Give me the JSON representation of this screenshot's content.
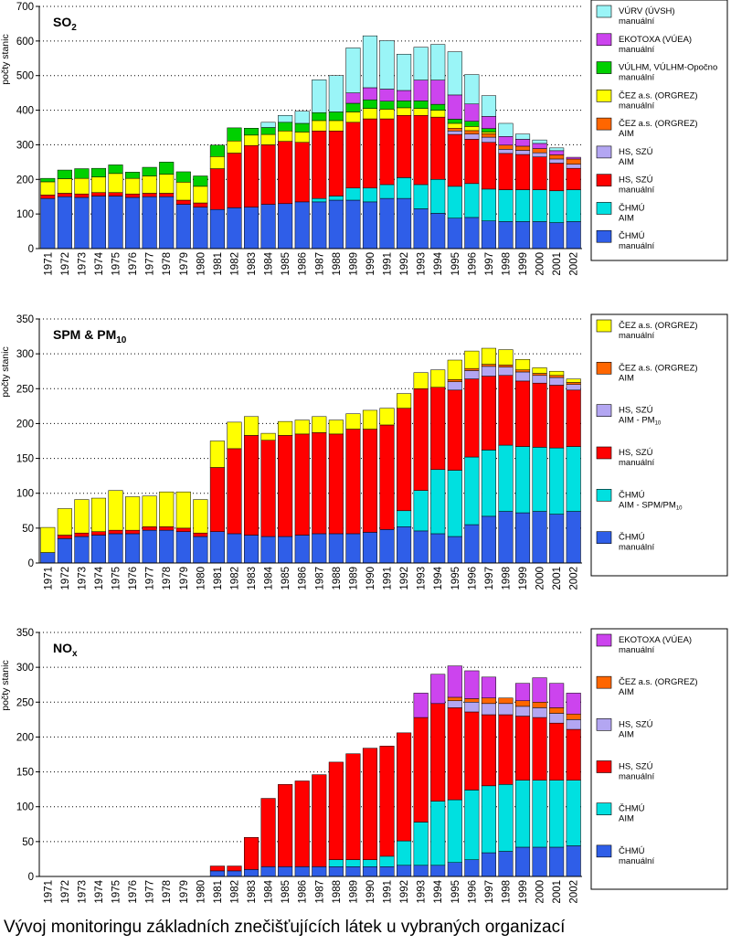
{
  "caption": "Vývoj monitoringu základních znečišťujících látek u vybraných organizací",
  "chart_data": [
    {
      "type": "bar",
      "stacked": true,
      "title": "SO2",
      "title_main": "SO",
      "title_sub": "2",
      "ylabel": "počty stanic",
      "ylim": [
        0,
        700
      ],
      "yticks": [
        0,
        100,
        200,
        300,
        400,
        500,
        600,
        700
      ],
      "grid": "dotted horizontal",
      "legend_position": "right",
      "categories": [
        "1971",
        "1972",
        "1973",
        "1974",
        "1975",
        "1976",
        "1977",
        "1978",
        "1979",
        "1980",
        "1981",
        "1982",
        "1983",
        "1984",
        "1985",
        "1986",
        "1987",
        "1988",
        "1989",
        "1990",
        "1991",
        "1992",
        "1993",
        "1994",
        "1995",
        "1996",
        "1997",
        "1998",
        "1999",
        "2000",
        "2001",
        "2002"
      ],
      "series": [
        {
          "name": "ČHMÚ manuální",
          "label1": "ČHMÚ",
          "label2": "manuální",
          "color": "#2f5ee8",
          "values": [
            145,
            150,
            148,
            152,
            152,
            148,
            150,
            150,
            128,
            120,
            113,
            118,
            120,
            128,
            130,
            135,
            135,
            140,
            140,
            135,
            145,
            145,
            115,
            102,
            88,
            90,
            80,
            78,
            78,
            78,
            75,
            78
          ]
        },
        {
          "name": "ČHMÚ AIM",
          "label1": "ČHMÚ",
          "label2": "AIM",
          "color": "#00e0e0",
          "values": [
            0,
            0,
            0,
            0,
            0,
            0,
            0,
            0,
            0,
            0,
            0,
            0,
            0,
            0,
            0,
            0,
            10,
            12,
            35,
            40,
            40,
            60,
            70,
            98,
            92,
            98,
            92,
            92,
            92,
            92,
            92,
            92
          ]
        },
        {
          "name": "HS, SZÚ manuální",
          "label1": "HS, SZÚ",
          "label2": "manuální",
          "color": "#ff0000",
          "values": [
            10,
            10,
            10,
            10,
            10,
            10,
            10,
            10,
            12,
            12,
            118,
            158,
            178,
            172,
            180,
            172,
            195,
            188,
            190,
            200,
            190,
            180,
            200,
            180,
            150,
            128,
            135,
            105,
            102,
            95,
            80,
            62
          ]
        },
        {
          "name": "HS, SZÚ AIM",
          "label1": "HS, SZÚ",
          "label2": "AIM",
          "color": "#b3a6f2",
          "values": [
            0,
            0,
            0,
            0,
            0,
            0,
            0,
            0,
            0,
            0,
            0,
            0,
            0,
            0,
            0,
            0,
            0,
            0,
            0,
            0,
            0,
            0,
            0,
            0,
            10,
            15,
            15,
            12,
            12,
            12,
            12,
            12
          ]
        },
        {
          "name": "ČEZ a.s. (ORGREZ) AIM",
          "label1": "ČEZ a.s. (ORGREZ)",
          "label2": "AIM",
          "color": "#ff6600",
          "values": [
            0,
            0,
            0,
            0,
            0,
            0,
            0,
            0,
            0,
            0,
            0,
            0,
            0,
            0,
            0,
            0,
            0,
            0,
            0,
            0,
            0,
            0,
            0,
            0,
            8,
            10,
            10,
            12,
            12,
            12,
            12,
            15
          ]
        },
        {
          "name": "ČEZ a.s. (ORGREZ) manuální",
          "label1": "ČEZ a.s. (ORGREZ)",
          "label2": "manuální",
          "color": "#ffff00",
          "values": [
            38,
            42,
            45,
            45,
            55,
            45,
            50,
            55,
            52,
            48,
            35,
            35,
            30,
            30,
            30,
            30,
            30,
            30,
            30,
            30,
            28,
            22,
            20,
            20,
            14,
            12,
            5,
            0,
            0,
            0,
            0,
            0
          ]
        },
        {
          "name": "VÚLHM, VÚLHM-Opočno manuální",
          "label1": "VÚLHM, VÚLHM-Opočno",
          "label2": "manuální",
          "color": "#00d000",
          "values": [
            10,
            25,
            28,
            25,
            25,
            18,
            25,
            35,
            30,
            30,
            33,
            38,
            20,
            20,
            25,
            25,
            23,
            25,
            25,
            25,
            23,
            20,
            22,
            17,
            12,
            15,
            10,
            0,
            0,
            0,
            0,
            0
          ]
        },
        {
          "name": "EKOTOXA (VÚEA) manuální",
          "label1": "EKOTOXA (VÚEA)",
          "label2": "manuální",
          "color": "#cc44ee",
          "values": [
            0,
            0,
            0,
            0,
            0,
            0,
            0,
            0,
            0,
            0,
            0,
            0,
            0,
            0,
            0,
            0,
            0,
            0,
            30,
            35,
            35,
            30,
            60,
            70,
            70,
            50,
            35,
            25,
            20,
            15,
            12,
            5
          ]
        },
        {
          "name": "VÚRV (ÚVSH) manuální",
          "label1": "VÚRV (ÚVSH)",
          "label2": "manuální",
          "color": "#9af5f7",
          "values": [
            0,
            0,
            0,
            0,
            0,
            0,
            0,
            0,
            0,
            0,
            0,
            0,
            0,
            15,
            20,
            35,
            95,
            105,
            130,
            150,
            140,
            105,
            95,
            103,
            125,
            85,
            60,
            38,
            15,
            10,
            8,
            0
          ]
        }
      ]
    },
    {
      "type": "bar",
      "stacked": true,
      "title": "SPM & PM10",
      "title_main": "SPM & PM",
      "title_sub": "10",
      "ylabel": "počty stanic",
      "ylim": [
        0,
        350
      ],
      "yticks": [
        0,
        50,
        100,
        150,
        200,
        250,
        300,
        350
      ],
      "grid": "dotted horizontal",
      "legend_position": "right",
      "categories": [
        "1971",
        "1972",
        "1973",
        "1974",
        "1975",
        "1976",
        "1977",
        "1978",
        "1979",
        "1980",
        "1981",
        "1982",
        "1983",
        "1984",
        "1985",
        "1986",
        "1987",
        "1988",
        "1989",
        "1990",
        "1991",
        "1992",
        "1993",
        "1994",
        "1995",
        "1996",
        "1997",
        "1998",
        "1999",
        "2000",
        "2001",
        "2002"
      ],
      "series": [
        {
          "name": "ČHMÚ manuální",
          "label1": "ČHMÚ",
          "label2": "manuální",
          "color": "#2f5ee8",
          "values": [
            15,
            35,
            38,
            40,
            42,
            42,
            47,
            47,
            45,
            38,
            45,
            42,
            40,
            38,
            38,
            40,
            42,
            42,
            42,
            44,
            48,
            52,
            46,
            42,
            38,
            55,
            67,
            74,
            72,
            74,
            70,
            74
          ]
        },
        {
          "name": "ČHMÚ AIM - SPM/PM10",
          "label1": "ČHMÚ",
          "label2": "AIM - SPM/PM",
          "sub2": "10",
          "color": "#00e0e0",
          "values": [
            0,
            0,
            0,
            0,
            0,
            0,
            0,
            0,
            0,
            0,
            0,
            0,
            0,
            0,
            0,
            0,
            0,
            0,
            0,
            0,
            0,
            23,
            58,
            92,
            95,
            97,
            95,
            95,
            95,
            92,
            95,
            93
          ]
        },
        {
          "name": "HS, SZÚ manuální",
          "label1": "HS, SZÚ",
          "label2": "manuální",
          "color": "#ff0000",
          "values": [
            0,
            5,
            5,
            5,
            5,
            5,
            5,
            5,
            5,
            5,
            92,
            122,
            143,
            138,
            145,
            145,
            145,
            143,
            150,
            148,
            150,
            147,
            146,
            118,
            115,
            112,
            106,
            100,
            94,
            92,
            90,
            81
          ]
        },
        {
          "name": "HS, SZÚ AIM - PM10",
          "label1": "HS, SZÚ",
          "label2": "AIM - PM",
          "sub2": "10",
          "color": "#b3a6f2",
          "values": [
            0,
            0,
            0,
            0,
            0,
            0,
            0,
            0,
            0,
            0,
            0,
            0,
            0,
            0,
            0,
            0,
            0,
            0,
            0,
            0,
            0,
            0,
            0,
            0,
            12,
            12,
            14,
            12,
            13,
            11,
            11,
            8
          ]
        },
        {
          "name": "ČEZ a.s. (ORGREZ) AIM",
          "label1": "ČEZ a.s. (ORGREZ)",
          "label2": "AIM",
          "color": "#ff6600",
          "values": [
            0,
            0,
            0,
            0,
            0,
            0,
            0,
            0,
            0,
            0,
            0,
            0,
            0,
            0,
            0,
            0,
            0,
            0,
            0,
            0,
            0,
            0,
            0,
            0,
            3,
            3,
            3,
            3,
            3,
            3,
            3,
            3
          ]
        },
        {
          "name": "ČEZ a.s. (ORGREZ) manuální",
          "label1": "ČEZ a.s. (ORGREZ)",
          "label2": "manuální",
          "color": "#ffff00",
          "values": [
            36,
            38,
            48,
            48,
            57,
            48,
            44,
            50,
            52,
            48,
            38,
            38,
            27,
            10,
            20,
            20,
            23,
            20,
            22,
            27,
            24,
            21,
            23,
            25,
            28,
            25,
            23,
            22,
            15,
            8,
            6,
            5
          ]
        }
      ]
    },
    {
      "type": "bar",
      "stacked": true,
      "title": "NOx",
      "title_main": "NO",
      "title_sub": "x",
      "ylabel": "počty stanic",
      "ylim": [
        0,
        350
      ],
      "yticks": [
        0,
        50,
        100,
        150,
        200,
        250,
        300,
        350
      ],
      "grid": "dotted horizontal",
      "legend_position": "right",
      "categories": [
        "1971",
        "1972",
        "1973",
        "1974",
        "1975",
        "1976",
        "1977",
        "1978",
        "1979",
        "1980",
        "1981",
        "1982",
        "1983",
        "1984",
        "1985",
        "1986",
        "1987",
        "1988",
        "1989",
        "1990",
        "1991",
        "1992",
        "1993",
        "1994",
        "1995",
        "1996",
        "1997",
        "1998",
        "1999",
        "2000",
        "2001",
        "2002"
      ],
      "series": [
        {
          "name": "ČHMÚ manuální",
          "label1": "ČHMÚ",
          "label2": "manuální",
          "color": "#2f5ee8",
          "values": [
            0,
            0,
            0,
            0,
            0,
            0,
            0,
            0,
            0,
            0,
            8,
            8,
            10,
            14,
            14,
            14,
            14,
            14,
            14,
            14,
            14,
            16,
            16,
            16,
            20,
            24,
            34,
            36,
            42,
            42,
            42,
            44
          ]
        },
        {
          "name": "ČHMÚ AIM",
          "label1": "ČHMÚ",
          "label2": "AIM",
          "color": "#00e0e0",
          "values": [
            0,
            0,
            0,
            0,
            0,
            0,
            0,
            0,
            0,
            0,
            0,
            0,
            0,
            0,
            0,
            0,
            0,
            10,
            10,
            10,
            15,
            35,
            62,
            92,
            90,
            100,
            96,
            96,
            96,
            96,
            96,
            94
          ]
        },
        {
          "name": "HS, SZÚ manuální",
          "label1": "HS, SZÚ",
          "label2": "manuální",
          "color": "#ff0000",
          "values": [
            0,
            0,
            0,
            0,
            0,
            0,
            0,
            0,
            0,
            0,
            7,
            7,
            46,
            98,
            118,
            123,
            132,
            140,
            152,
            160,
            158,
            155,
            150,
            140,
            132,
            112,
            102,
            100,
            92,
            90,
            82,
            73
          ]
        },
        {
          "name": "HS, SZÚ AIM",
          "label1": "HS, SZÚ",
          "label2": "AIM",
          "color": "#b3a6f2",
          "values": [
            0,
            0,
            0,
            0,
            0,
            0,
            0,
            0,
            0,
            0,
            0,
            0,
            0,
            0,
            0,
            0,
            0,
            0,
            0,
            0,
            0,
            0,
            0,
            0,
            10,
            14,
            16,
            16,
            14,
            14,
            14,
            14
          ]
        },
        {
          "name": "ČEZ a.s. (ORGREZ) AIM",
          "label1": "ČEZ a.s. (ORGREZ)",
          "label2": "AIM",
          "color": "#ff6600",
          "values": [
            0,
            0,
            0,
            0,
            0,
            0,
            0,
            0,
            0,
            0,
            0,
            0,
            0,
            0,
            0,
            0,
            0,
            0,
            0,
            0,
            0,
            0,
            0,
            0,
            5,
            5,
            8,
            8,
            8,
            8,
            8,
            8
          ]
        },
        {
          "name": "EKOTOXA (VÚEA) manuální",
          "label1": "EKOTOXA (VÚEA)",
          "label2": "manuální",
          "color": "#cc44ee",
          "values": [
            0,
            0,
            0,
            0,
            0,
            0,
            0,
            0,
            0,
            0,
            0,
            0,
            0,
            0,
            0,
            0,
            0,
            0,
            0,
            0,
            0,
            0,
            35,
            42,
            45,
            40,
            30,
            0,
            25,
            35,
            35,
            30
          ]
        }
      ]
    }
  ]
}
